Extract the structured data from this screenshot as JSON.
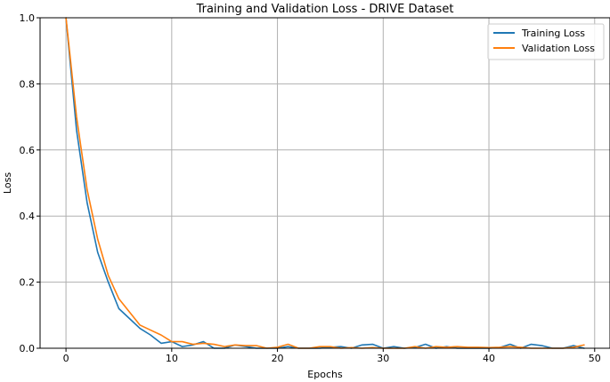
{
  "chart_data": {
    "type": "line",
    "title": "Training and Validation Loss - DRIVE Dataset",
    "xlabel": "Epochs",
    "ylabel": "Loss",
    "xlim": [
      -2.45,
      51.45
    ],
    "ylim": [
      0,
      1
    ],
    "xticks": [
      0,
      10,
      20,
      30,
      40,
      50
    ],
    "yticks": [
      0.0,
      0.2,
      0.4,
      0.6,
      0.8,
      1.0
    ],
    "xtick_labels": [
      "0",
      "10",
      "20",
      "30",
      "40",
      "50"
    ],
    "ytick_labels": [
      "0.0",
      "0.2",
      "0.4",
      "0.6",
      "0.8",
      "1.0"
    ],
    "grid": true,
    "legend_position": "top-right",
    "series": [
      {
        "name": "Training Loss",
        "color": "#1f77b4",
        "x": [
          0,
          1,
          2,
          3,
          4,
          5,
          6,
          7,
          8,
          9,
          10,
          11,
          12,
          13,
          14,
          15,
          16,
          17,
          18,
          19,
          20,
          21,
          22,
          23,
          24,
          25,
          26,
          27,
          28,
          29,
          30,
          31,
          32,
          33,
          34,
          35,
          36,
          37,
          38,
          39,
          40,
          41,
          42,
          43,
          44,
          45,
          46,
          47,
          48,
          49
        ],
        "y": [
          1.0,
          0.66,
          0.44,
          0.29,
          0.2,
          0.12,
          0.09,
          0.06,
          0.04,
          0.015,
          0.02,
          0.005,
          0.01,
          0.02,
          0.0,
          0.0,
          0.01,
          0.005,
          0.0,
          0.0,
          0.0,
          0.005,
          0.0,
          0.0,
          0.0,
          0.003,
          0.005,
          0.0,
          0.01,
          0.012,
          0.0,
          0.005,
          0.0,
          0.002,
          0.012,
          0.0,
          0.005,
          0.0,
          0.0,
          0.0,
          0.0,
          0.002,
          0.012,
          0.0,
          0.012,
          0.008,
          0.0,
          0.0,
          0.008,
          0.0
        ]
      },
      {
        "name": "Validation Loss",
        "color": "#ff7f0e",
        "x": [
          0,
          1,
          2,
          3,
          4,
          5,
          6,
          7,
          8,
          9,
          10,
          11,
          12,
          13,
          14,
          15,
          16,
          17,
          18,
          19,
          20,
          21,
          22,
          23,
          24,
          25,
          26,
          27,
          28,
          29,
          30,
          31,
          32,
          33,
          34,
          35,
          36,
          37,
          38,
          39,
          40,
          41,
          42,
          43,
          44,
          45,
          46,
          47,
          48,
          49
        ],
        "y": [
          1.0,
          0.7,
          0.48,
          0.33,
          0.22,
          0.15,
          0.11,
          0.07,
          0.055,
          0.04,
          0.02,
          0.02,
          0.012,
          0.015,
          0.012,
          0.005,
          0.01,
          0.008,
          0.008,
          0.0,
          0.003,
          0.012,
          0.0,
          0.0,
          0.005,
          0.005,
          0.0,
          0.002,
          0.0,
          0.002,
          0.0,
          0.0,
          0.0,
          0.005,
          0.0,
          0.005,
          0.003,
          0.005,
          0.003,
          0.003,
          0.002,
          0.003,
          0.005,
          0.003,
          0.0,
          0.0,
          0.0,
          0.0,
          0.003,
          0.01
        ]
      }
    ]
  }
}
